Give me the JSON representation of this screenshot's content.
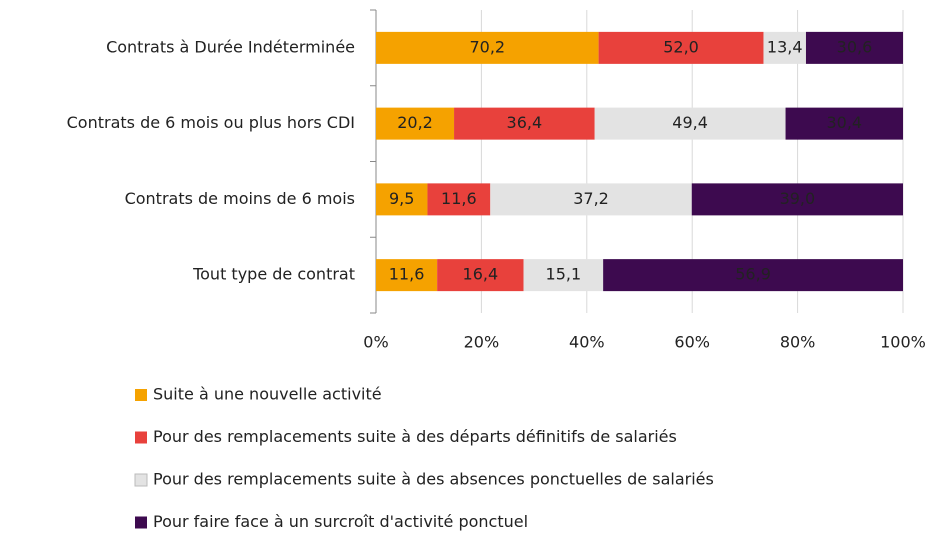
{
  "chart_data": {
    "type": "bar",
    "orientation": "horizontal",
    "stacked": "percent",
    "categories": [
      "Contrats à Durée Indéterminée",
      "Contrats de 6 mois ou plus hors CDI",
      "Contrats de moins de 6 mois",
      "Tout type de contrat"
    ],
    "series": [
      {
        "name": "Suite à une nouvelle activité",
        "color": "#f5a200",
        "values": [
          70.2,
          20.2,
          9.5,
          11.6
        ],
        "value_labels": [
          "70,2",
          "20,2",
          "9,5",
          "11,6"
        ]
      },
      {
        "name": "Pour des remplacements suite à des départs définitifs de salariés",
        "color": "#e8413c",
        "values": [
          52.0,
          36.4,
          11.6,
          16.4
        ],
        "value_labels": [
          "52,0",
          "36,4",
          "11,6",
          "16,4"
        ]
      },
      {
        "name": "Pour des remplacements suite à des absences ponctuelles de salariés",
        "color": "#e3e3e3",
        "values": [
          13.4,
          49.4,
          37.2,
          15.1
        ],
        "value_labels": [
          "13,4",
          "49,4",
          "37,2",
          "15,1"
        ]
      },
      {
        "name": "Pour faire face à un surcroît d'activité ponctuel",
        "color": "#3d0a4f",
        "values": [
          30.6,
          30.4,
          39.0,
          56.9
        ],
        "value_labels": [
          "30,6",
          "30,4",
          "39,0",
          "56,9"
        ]
      }
    ],
    "xlim": [
      0,
      100
    ],
    "xticks": [
      {
        "value": 0,
        "label": "0%"
      },
      {
        "value": 20,
        "label": "20%"
      },
      {
        "value": 40,
        "label": "40%"
      },
      {
        "value": 60,
        "label": "60%"
      },
      {
        "value": 80,
        "label": "80%"
      },
      {
        "value": 100,
        "label": "100%"
      }
    ],
    "grid": true,
    "legend": "bottom"
  }
}
